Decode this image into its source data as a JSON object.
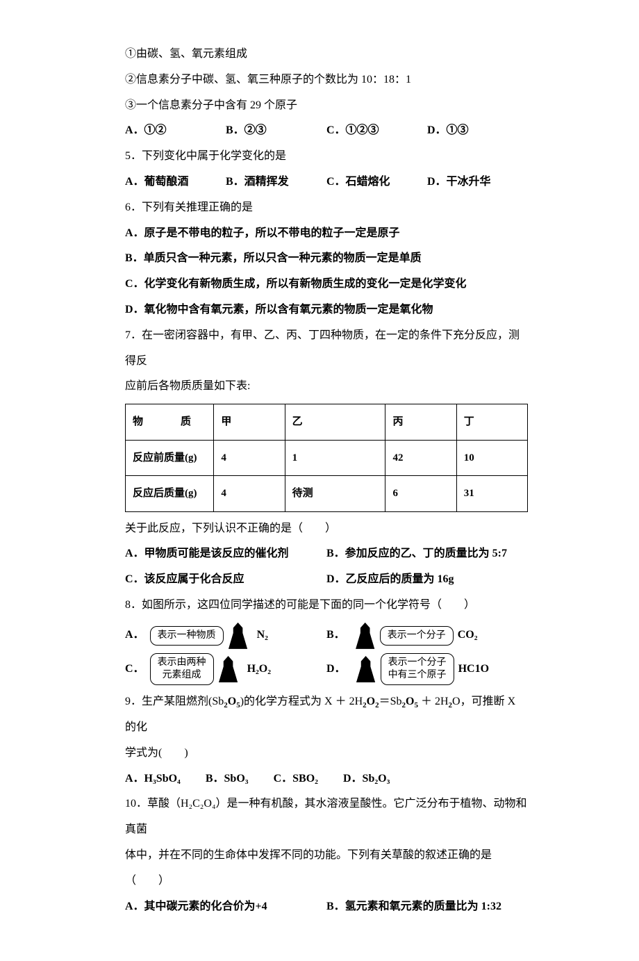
{
  "pre": {
    "s1": "①由碳、氢、氧元素组成",
    "s2": "②信息素分子中碳、氢、氧三种原子的个数比为 10：18：1",
    "s3": "③一个信息素分子中含有 29 个原子",
    "optA": "A．①②",
    "optB": "B．②③",
    "optC": "C．①②③",
    "optD": "D．①③"
  },
  "q5": {
    "stem": "5．下列变化中属于化学变化的是",
    "A": "A．葡萄酿酒",
    "B": "B．酒精挥发",
    "C": "C．石蜡熔化",
    "D": "D．干冰升华"
  },
  "q6": {
    "stem": "6．下列有关推理正确的是",
    "A": "A．原子是不带电的粒子，所以不带电的粒子一定是原子",
    "B": "B．单质只含一种元素，所以只含一种元素的物质一定是单质",
    "C": "C．化学变化有新物质生成，所以有新物质生成的变化一定是化学变化",
    "D": "D．氧化物中含有氧元素，所以含有氧元素的物质一定是氧化物"
  },
  "q7": {
    "stem1": "7．在一密闭容器中，有甲、乙、丙、丁四种物质，在一定的条件下充分反应，测得反",
    "stem2": "应前后各物质质量如下表:",
    "table": {
      "head": [
        "物　　质",
        "甲",
        "乙",
        "丙",
        "丁"
      ],
      "r1": [
        "反应前质量(g)",
        "4",
        "1",
        "42",
        "10"
      ],
      "r2": [
        "反应后质量(g)",
        "4",
        "待测",
        "6",
        "31"
      ]
    },
    "after": "关于此反应，下列认识不正确的是（　　）",
    "A": "A．甲物质可能是该反应的催化剂",
    "B": "B．参加反应的乙、丁的质量比为 5:7",
    "C": "C．该反应属于化合反应",
    "D": "D．乙反应后的质量为 16g"
  },
  "q8": {
    "stem": "8．如图所示，这四位同学描述的可能是下面的同一个化学符号（　　）",
    "A": {
      "label": "A．",
      "bubble": "表示一种物质",
      "formula": "N₂"
    },
    "B": {
      "label": "B．",
      "bubble": "表示一个分子",
      "formula": "CO₂"
    },
    "C": {
      "label": "C．",
      "bubble1": "表示由两种",
      "bubble2": "元素组成",
      "formula": "H₂O₂"
    },
    "D": {
      "label": "D．",
      "bubble1": "表示一个分子",
      "bubble2": "中有三个原子",
      "formula": "HC1O"
    }
  },
  "q9": {
    "stem1_a": "9．生产某阻燃剂(Sb",
    "stem1_b": ")的化学方程式为 X ＋ 2H",
    "stem1_c": "＝Sb",
    "stem1_d": " ＋ 2H",
    "stem1_e": "O，可推断 X 的化",
    "stem2": "学式为(　　)",
    "A": "A．H₃SbO₄",
    "B": "B．SbO₃",
    "C": "C．SBO₂",
    "D": "D．Sb₂O₃"
  },
  "q10": {
    "stem1": "10．草酸（H₂C₂O₄）是一种有机酸，其水溶液呈酸性。它广泛分布于植物、动物和真菌",
    "stem2": "体中，并在不同的生命体中发挥不同的功能。下列有关草酸的叙述正确的是（　　）",
    "A": "A．其中碳元素的化合价为+4",
    "B": "B．氢元素和氧元素的质量比为 1:32"
  }
}
